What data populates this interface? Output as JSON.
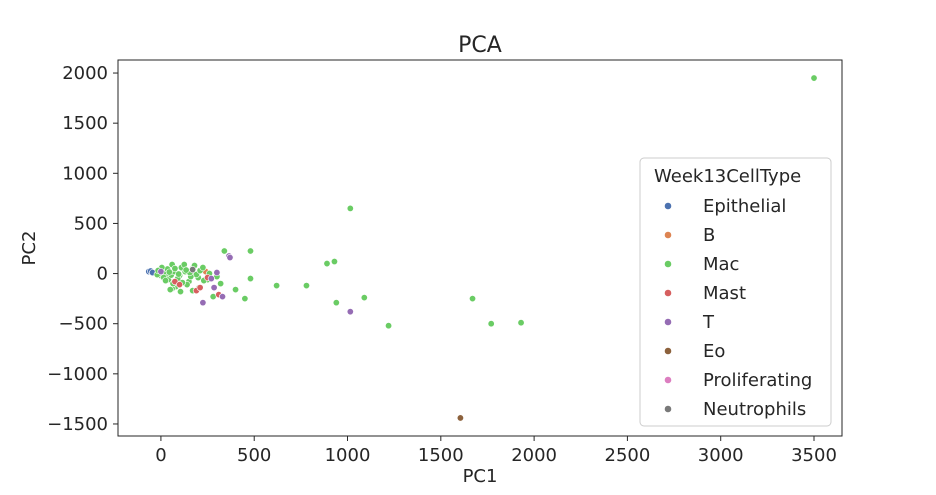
{
  "chart_data": {
    "type": "scatter",
    "title": "PCA",
    "xlabel": "PC1",
    "ylabel": "PC2",
    "xlim": [
      -230,
      3650
    ],
    "ylim": [
      -1620,
      2130
    ],
    "xticks": [
      0,
      500,
      1000,
      1500,
      2000,
      2500,
      3000,
      3500
    ],
    "yticks": [
      -1500,
      -1000,
      -500,
      0,
      500,
      1000,
      1500,
      2000
    ],
    "grid": false,
    "legend": {
      "title": "Week13CellType",
      "placement": "right"
    },
    "series": [
      {
        "name": "Epithelial",
        "color": "#4C72B0",
        "points": [
          [
            -65,
            20
          ],
          [
            -55,
            25
          ],
          [
            -45,
            10
          ]
        ]
      },
      {
        "name": "B",
        "color": "#DD8452",
        "points": [
          [
            240,
            20
          ]
        ]
      },
      {
        "name": "Mac",
        "color": "#6ACC64",
        "points": [
          [
            3500,
            1950
          ],
          [
            1015,
            650
          ],
          [
            930,
            120
          ],
          [
            890,
            100
          ],
          [
            480,
            225
          ],
          [
            340,
            225
          ],
          [
            480,
            -50
          ],
          [
            620,
            -120
          ],
          [
            780,
            -120
          ],
          [
            400,
            -160
          ],
          [
            450,
            -250
          ],
          [
            940,
            -290
          ],
          [
            1090,
            -240
          ],
          [
            1220,
            -520
          ],
          [
            1670,
            -250
          ],
          [
            1770,
            -500
          ],
          [
            1930,
            -490
          ],
          [
            280,
            -230
          ],
          [
            320,
            -100
          ],
          [
            250,
            -60
          ],
          [
            200,
            -40
          ],
          [
            150,
            -80
          ],
          [
            120,
            70
          ],
          [
            60,
            90
          ],
          [
            30,
            -30
          ],
          [
            -10,
            10
          ],
          [
            10,
            40
          ],
          [
            40,
            -60
          ],
          [
            80,
            -130
          ],
          [
            100,
            -20
          ],
          [
            130,
            20
          ],
          [
            170,
            50
          ],
          [
            190,
            -10
          ],
          [
            210,
            30
          ],
          [
            230,
            -70
          ],
          [
            0,
            -20
          ],
          [
            20,
            20
          ],
          [
            -20,
            -10
          ],
          [
            -5,
            30
          ],
          [
            15,
            -40
          ],
          [
            35,
            45
          ],
          [
            55,
            -15
          ],
          [
            70,
            20
          ],
          [
            90,
            -50
          ],
          [
            110,
            60
          ],
          [
            140,
            -110
          ],
          [
            160,
            -30
          ],
          [
            180,
            80
          ],
          [
            60,
            -150
          ],
          [
            105,
            -180
          ],
          [
            125,
            90
          ],
          [
            155,
            10
          ],
          [
            45,
            15
          ],
          [
            25,
            -70
          ],
          [
            75,
            50
          ],
          [
            95,
            -5
          ],
          [
            115,
            -90
          ],
          [
            135,
            35
          ],
          [
            5,
            60
          ],
          [
            -15,
            30
          ],
          [
            65,
            -100
          ],
          [
            50,
            -160
          ],
          [
            300,
            -30
          ],
          [
            260,
            0
          ],
          [
            205,
            -140
          ],
          [
            225,
            60
          ],
          [
            170,
            -170
          ]
        ]
      },
      {
        "name": "Mast",
        "color": "#D65F5F",
        "points": [
          [
            75,
            -80
          ],
          [
            100,
            -110
          ],
          [
            190,
            -170
          ],
          [
            210,
            -140
          ],
          [
            310,
            -210
          ],
          [
            250,
            -40
          ]
        ]
      },
      {
        "name": "T",
        "color": "#956CB4",
        "points": [
          [
            0,
            20
          ],
          [
            225,
            -290
          ],
          [
            285,
            -140
          ],
          [
            330,
            -230
          ],
          [
            365,
            175
          ],
          [
            370,
            160
          ],
          [
            1015,
            -380
          ],
          [
            270,
            -50
          ],
          [
            300,
            10
          ]
        ]
      },
      {
        "name": "Eo",
        "color": "#8C613C",
        "points": [
          [
            1605,
            -1440
          ]
        ]
      },
      {
        "name": "Proliferating",
        "color": "#DC7EC0",
        "points": []
      },
      {
        "name": "Neutrophils",
        "color": "#797979",
        "points": [
          [
            170,
            40
          ]
        ]
      }
    ]
  }
}
